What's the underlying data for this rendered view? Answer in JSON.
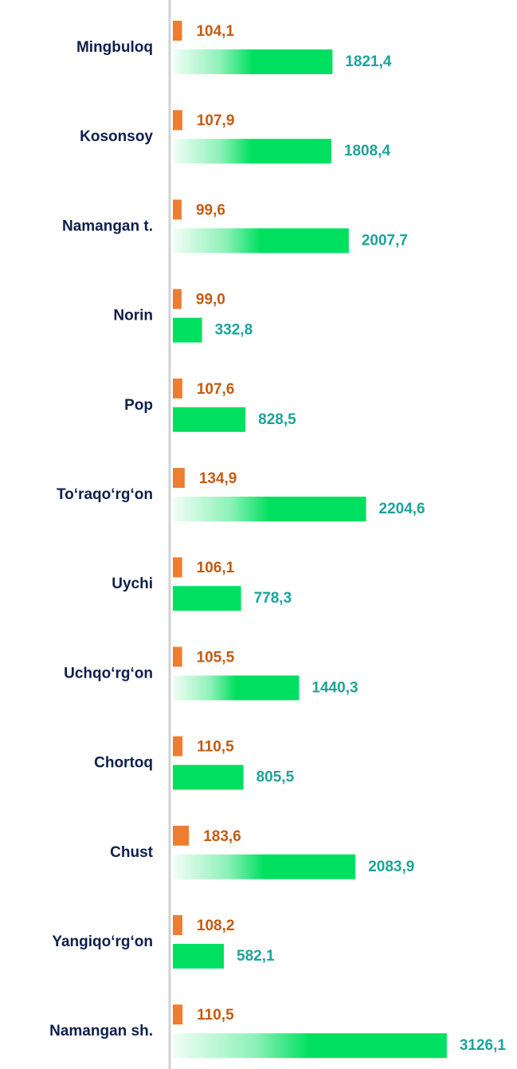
{
  "chart_data": {
    "type": "bar",
    "orientation": "horizontal",
    "categories": [
      "Mingbuloq",
      "Kosonsoy",
      "Namangan t.",
      "Norin",
      "Pop",
      "To‘raqo‘rg‘on",
      "Uychi",
      "Uchqo‘rg‘on",
      "Chortoq",
      "Chust",
      "Yangiqo‘rg‘on",
      "Namangan sh."
    ],
    "series": [
      {
        "color": "#ed7d31",
        "label_color": "#c55a11",
        "values": [
          104.1,
          107.9,
          99.6,
          99.0,
          107.6,
          134.9,
          106.1,
          105.5,
          110.5,
          183.6,
          108.2,
          110.5
        ],
        "value_labels": [
          "104,1",
          "107,9",
          "99,6",
          "99,0",
          "107,6",
          "134,9",
          "106,1",
          "105,5",
          "110,5",
          "183,6",
          "108,2",
          "110,5"
        ]
      },
      {
        "color": "#00e060",
        "label_color": "#1ca39b",
        "values": [
          1821.4,
          1808.4,
          2007.7,
          332.8,
          828.5,
          2204.6,
          778.3,
          1440.3,
          805.5,
          2083.9,
          582.1,
          3126.1
        ],
        "value_labels": [
          "1821,4",
          "1808,4",
          "2007,7",
          "332,8",
          "828,5",
          "2204,6",
          "778,3",
          "1440,3",
          "805,5",
          "2083,9",
          "582,1",
          "3126,1"
        ]
      }
    ],
    "xlim": [
      0,
      3500
    ]
  }
}
